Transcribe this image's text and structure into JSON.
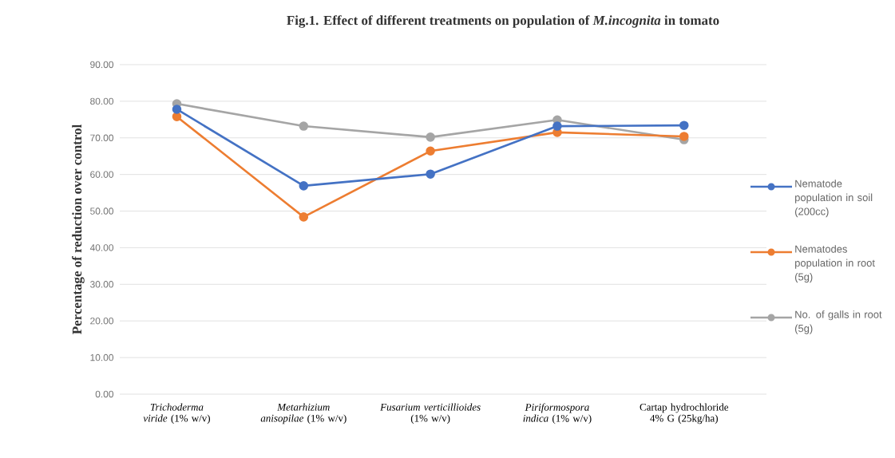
{
  "chart_data": {
    "type": "line",
    "title": "Fig.1. Effect of different treatments on population of *M.incognita* in tomato",
    "ylabel": "Percentage of reduction over control",
    "categories": [
      "*Trichoderma viride* (1% w/v)",
      "*Metarhizium anisopilae* (1% w/v)",
      "*Fusarium verticillioides* (1% w/v)",
      "*Piriformospora indica* (1% w/v)",
      "Cartap hydrochloride 4% G (25kg/ha)"
    ],
    "series": [
      {
        "name": "Nematode population in soil (200cc)",
        "color": "#4472c4",
        "values": [
          77.8,
          56.9,
          60.1,
          73.2,
          73.4
        ]
      },
      {
        "name": "Nematodes population in root (5g)",
        "color": "#ed7d31",
        "values": [
          75.8,
          48.4,
          66.4,
          71.5,
          70.4
        ]
      },
      {
        "name": "No. of galls in root (5g)",
        "color": "#a5a5a5",
        "values": [
          79.3,
          73.2,
          70.2,
          74.9,
          69.5
        ]
      }
    ],
    "ylim": [
      0,
      90
    ],
    "yticks": [
      {
        "value": 0,
        "label": "0.00"
      },
      {
        "value": 10,
        "label": "10.00"
      },
      {
        "value": 20,
        "label": "20.00"
      },
      {
        "value": 30,
        "label": "30.00"
      },
      {
        "value": 40,
        "label": "40.00"
      },
      {
        "value": 50,
        "label": "50.00"
      },
      {
        "value": 60,
        "label": "60.00"
      },
      {
        "value": 70,
        "label": "70.00"
      },
      {
        "value": 80,
        "label": "80.00"
      },
      {
        "value": 90,
        "label": "90.00"
      }
    ],
    "grid": "y",
    "legend": "right",
    "marker": "circle",
    "line_style": "solid"
  }
}
